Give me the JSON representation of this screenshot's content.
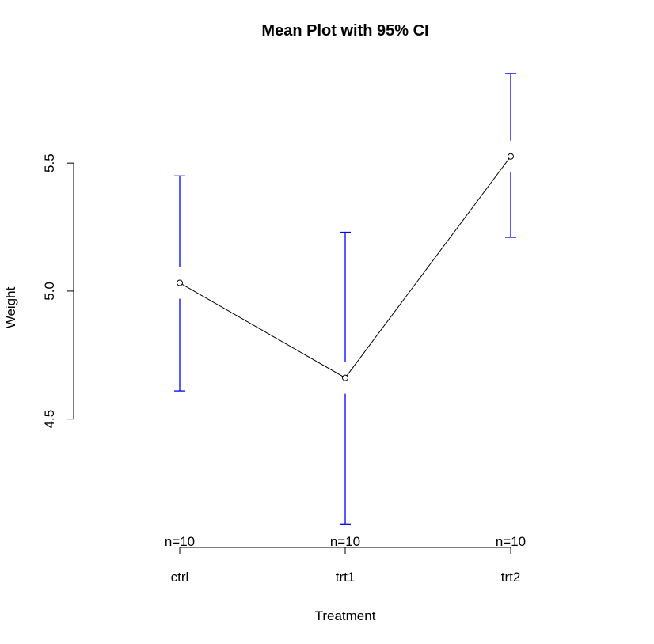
{
  "chart_data": {
    "type": "line",
    "title": "Mean Plot with 95% CI",
    "xlabel": "Treatment",
    "ylabel": "Weight",
    "categories": [
      "ctrl",
      "trt1",
      "trt2"
    ],
    "series": [
      {
        "values": [
          5.032,
          4.661,
          5.526
        ],
        "ci_lower": [
          4.61,
          4.09,
          5.21
        ],
        "ci_upper": [
          5.45,
          5.23,
          5.85
        ],
        "n_labels": [
          "n=10",
          "n=10",
          "n=10"
        ]
      }
    ],
    "yticks": [
      4.5,
      5.0,
      5.5
    ],
    "ytick_labels": [
      "4.5",
      "5.0",
      "5.5"
    ],
    "ylim": [
      4.06,
      5.89
    ],
    "grid": false,
    "colors": {
      "line": "#000000",
      "error_bars": "#0000ff",
      "points": "#000000"
    }
  }
}
